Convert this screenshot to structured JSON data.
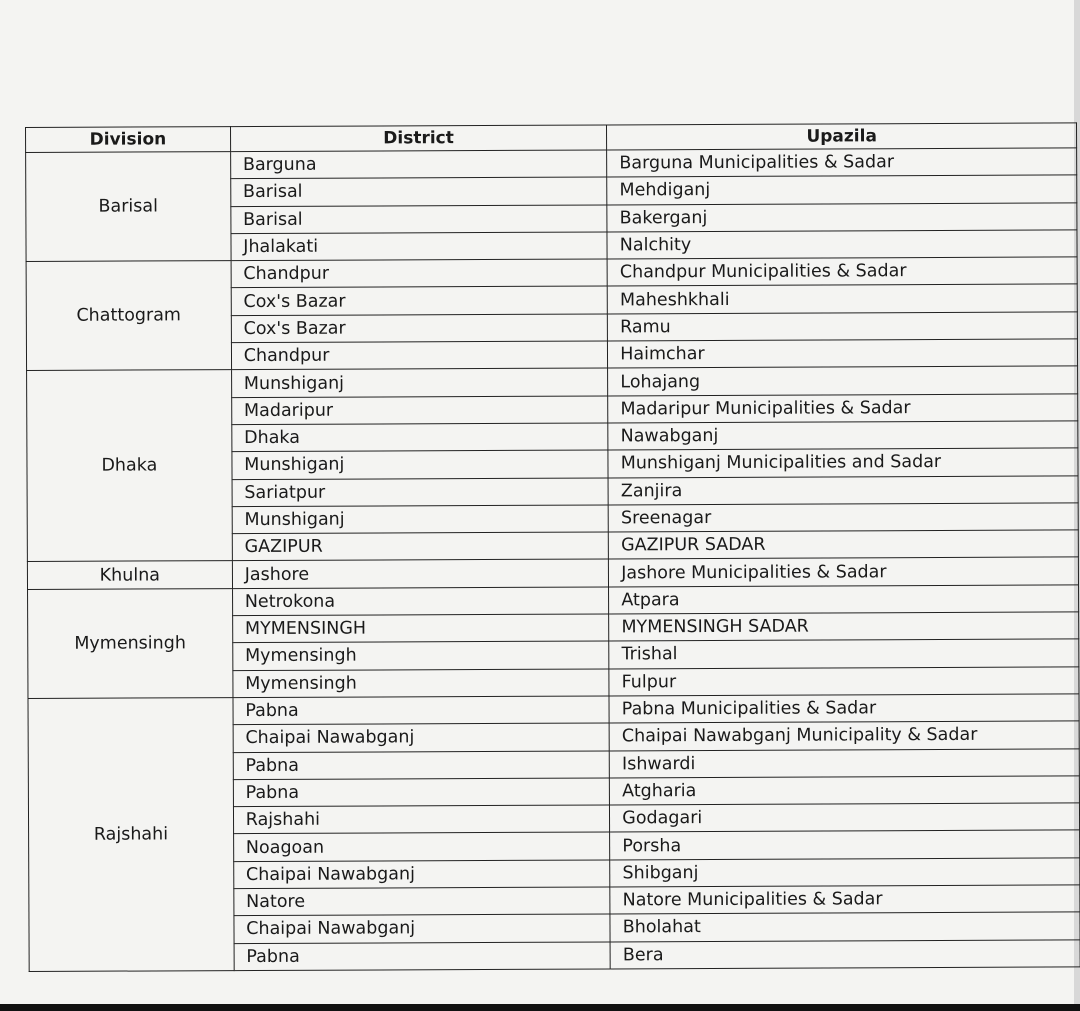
{
  "headers": [
    "Division",
    "District",
    "Upazila"
  ],
  "groups": [
    {
      "division": "Barisal",
      "rows": [
        [
          "Barguna",
          "Barguna Municipalities & Sadar"
        ],
        [
          "Barisal",
          "Mehdiganj"
        ],
        [
          "Barisal",
          "Bakerganj"
        ],
        [
          "Jhalakati",
          "Nalchity"
        ]
      ]
    },
    {
      "division": "Chattogram",
      "rows": [
        [
          "Chandpur",
          "Chandpur Municipalities & Sadar"
        ],
        [
          "Cox's Bazar",
          "Maheshkhali"
        ],
        [
          "Cox's Bazar",
          "Ramu"
        ],
        [
          "Chandpur",
          "Haimchar"
        ]
      ]
    },
    {
      "division": "Dhaka",
      "rows": [
        [
          "Munshiganj",
          "Lohajang"
        ],
        [
          "Madaripur",
          "Madaripur Municipalities & Sadar"
        ],
        [
          "Dhaka",
          "Nawabganj"
        ],
        [
          "Munshiganj",
          "Munshiganj Municipalities and Sadar"
        ],
        [
          "Sariatpur",
          "Zanjira"
        ],
        [
          "Munshiganj",
          "Sreenagar"
        ],
        [
          "GAZIPUR",
          "GAZIPUR SADAR"
        ]
      ]
    },
    {
      "division": "Khulna",
      "rows": [
        [
          "Jashore",
          "Jashore Municipalities & Sadar"
        ]
      ]
    },
    {
      "division": "Mymensingh",
      "rows": [
        [
          "Netrokona",
          "Atpara"
        ],
        [
          "MYMENSINGH",
          "MYMENSINGH SADAR"
        ],
        [
          "Mymensingh",
          "Trishal"
        ],
        [
          "Mymensingh",
          "Fulpur"
        ]
      ]
    },
    {
      "division": "Rajshahi",
      "rows": [
        [
          "Pabna",
          "Pabna Municipalities & Sadar"
        ],
        [
          "Chaipai Nawabganj",
          "Chaipai Nawabganj Municipality & Sadar"
        ],
        [
          "Pabna",
          "Ishwardi"
        ],
        [
          "Pabna",
          "Atgharia"
        ],
        [
          "Rajshahi",
          "Godagari"
        ],
        [
          "Noagoan",
          "Porsha"
        ],
        [
          "Chaipai Nawabganj",
          "Shibganj"
        ],
        [
          "Natore",
          "Natore Municipalities & Sadar"
        ],
        [
          "Chaipai Nawabganj",
          "Bholahat"
        ],
        [
          "Pabna",
          "Bera"
        ]
      ]
    }
  ]
}
